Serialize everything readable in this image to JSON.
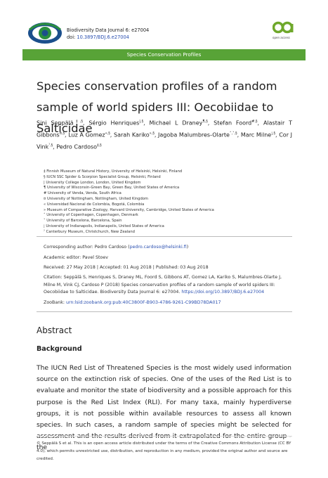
{
  "header": {
    "journal": "Biodiversity Data Journal 6: e27004",
    "doi_label": "doi:",
    "doi": "10.3897/BDJ.6.e27004",
    "oa_label": "open access",
    "banner": "Species Conservation Profiles"
  },
  "title": "Species conservation profiles of a random sample of world spiders III: Oecobiidae to Salticidae",
  "authors": [
    {
      "name": "Sini Seppälä",
      "sup": "‡,§",
      "sep": ","
    },
    {
      "name": "Sérgio Henriques",
      "sup": "|,§",
      "sep": ","
    },
    {
      "name": "Michael L Draney",
      "sup": "¶,§",
      "sep": ","
    },
    {
      "name": "Stefan Foord",
      "sup": "#,§",
      "sep": ","
    },
    {
      "name": "Alastair T Gibbons",
      "sup": "¤,§",
      "sep": ","
    },
    {
      "name": "Luz A Gomez",
      "sup": "«,§",
      "sep": ","
    },
    {
      "name": "Sarah Kariko",
      "sup": "»,§",
      "sep": ","
    },
    {
      "name": "Jagoba Malumbres-Olarte",
      "sup": "˄,˅,§",
      "sep": ","
    },
    {
      "name": "Marc Milne",
      "sup": "¦,§",
      "sep": ","
    },
    {
      "name": "Cor J Vink",
      "sup": "ˀ,§",
      "sep": ","
    },
    {
      "name": "Pedro Cardoso",
      "sup": "‡,§"
    }
  ],
  "affiliations": [
    "‡ Finnish Museum of Natural History, University of Helsinki, Helsinki, Finland",
    "§ IUCN SSC Spider & Scorpion Specialist Group, Helsinki, Finland",
    "| University College London, London, United Kingdom",
    "¶ University of Wisconsin-Green Bay, Green Bay, United States of America",
    "# University of Venda, Venda, South Africa",
    "¤ University of Nottingham, Nottingham, United Kingdom",
    "« Universidad Nacional de Colombia, Bogotá, Colombia",
    "» Museum of Comparative Zoology, Harvard University, Cambridge, United States of America",
    "˄ University of Copenhagen, Copenhagen, Denmark",
    "˅ University of Barcelona, Barcelona, Spain",
    "¦ University of Indianapolis, Indianapolis, United States of America",
    "ˀ Canterbury Museum, Christchurch, New Zealand"
  ],
  "meta": {
    "corresponding": "Corresponding author: Pedro Cardoso (",
    "email": "pedro.cardoso@helsinki.fi",
    "corresponding_end": ")",
    "editor": "Academic editor: Pavel Stoev",
    "dates": "Received: 27 May 2018 | Accepted: 01 Aug 2018 | Published: 03 Aug 2018",
    "citation": "Citation: Seppälä S, Henriques S, Draney ML, Foord S, Gibbons AT, Gomez LA, Kariko S, Malumbres-Olarte J, Milne M, Vink CJ, Cardoso P (2018) Species conservation profiles of a random sample of world spiders III: Oecobiidae to Salticidae. Biodiversity Data Journal 6: e27004.",
    "citation_doi": "https://doi.org/10.3897/BDJ.6.e27004",
    "zoobank_label": "ZooBank:",
    "zoobank": "urn:lsid:zoobank.org:pub:40C3800F-B903-4786-9261-C99BD78DA017"
  },
  "abstract": {
    "heading": "Abstract",
    "subheading": "Background",
    "text": "The IUCN Red List of Threatened Species is the most widely used information source on the extinction risk of species. One of the uses of the Red List is to evaluate and monitor the state of biodiversity and a possible approach for this purpose is the Red List Index (RLI). For many taxa, mainly hyperdiverse groups, it is not possible within available resources to assess all known species. In such cases, a random sample of species might be selected for assessment and the results derived from it extrapolated for the entire group - the"
  },
  "footer": "© Seppälä S et al. This is an open access article distributed under the terms of the Creative Commons Attribution License (CC BY 4.0), which permits unrestricted use, distribution, and reproduction in any medium, provided the original author and source are credited."
}
